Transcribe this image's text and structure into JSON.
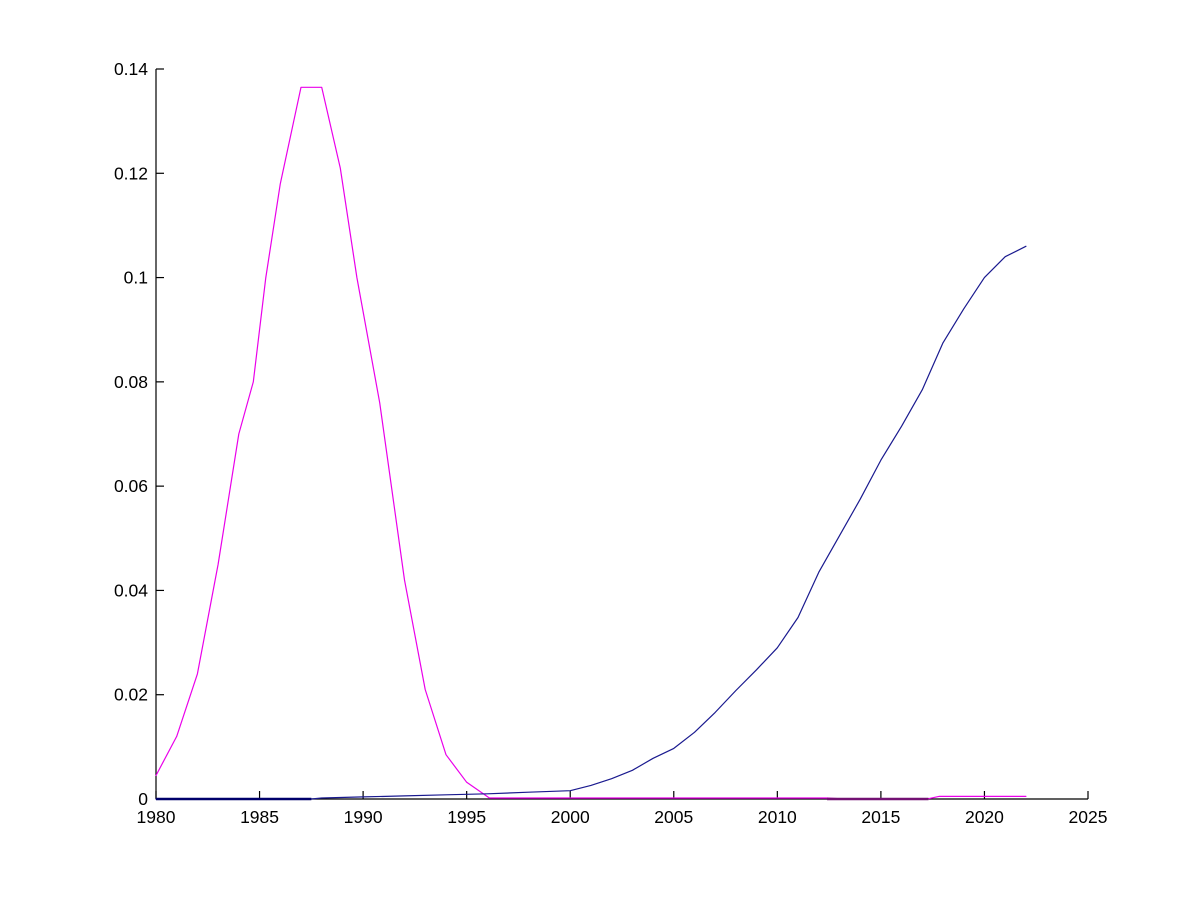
{
  "figure": {
    "background": "#ffffff",
    "title": ""
  },
  "chart_data": {
    "type": "line",
    "title": "",
    "xlabel": "",
    "ylabel": "",
    "xlim": [
      1980,
      2025
    ],
    "ylim": [
      0,
      0.14
    ],
    "grid": false,
    "legend": null,
    "axis_color": "#000000",
    "tick_length": 8,
    "x_ticks": [
      1980,
      1985,
      1990,
      1995,
      2000,
      2005,
      2010,
      2015,
      2020,
      2025
    ],
    "x_tick_labels": [
      "1980",
      "1985",
      "1990",
      "1995",
      "2000",
      "2005",
      "2010",
      "2015",
      "2020",
      "2025"
    ],
    "y_ticks": [
      0,
      0.02,
      0.04,
      0.06,
      0.08,
      0.1,
      0.12,
      0.14
    ],
    "y_tick_labels": [
      "0",
      "0.02",
      "0.04",
      "0.06",
      "0.08",
      "0.1",
      "0.12",
      "0.14"
    ],
    "series": [
      {
        "name": "magenta-bell-curve",
        "color": "#EA00EA",
        "width": 1.2,
        "points": [
          [
            1980,
            0.0045
          ],
          [
            1981,
            0.012
          ],
          [
            1982,
            0.024
          ],
          [
            1983,
            0.045
          ],
          [
            1984,
            0.07
          ],
          [
            1984.7,
            0.08
          ],
          [
            1985.3,
            0.1
          ],
          [
            1986,
            0.118
          ],
          [
            1987,
            0.1365
          ],
          [
            1988,
            0.1365
          ],
          [
            1988.9,
            0.121
          ],
          [
            1989.7,
            0.1
          ],
          [
            1990.8,
            0.076
          ],
          [
            1992,
            0.042
          ],
          [
            1993,
            0.021
          ],
          [
            1994,
            0.0085
          ],
          [
            1995,
            0.0032
          ],
          [
            1996.1,
            0.0002
          ],
          [
            2000,
            0.0002
          ],
          [
            2005,
            0.0002
          ],
          [
            2012.4,
            0.0002
          ],
          [
            2013,
            5e-05
          ],
          [
            2017.3,
            5e-05
          ],
          [
            2017.8,
            0.0005
          ],
          [
            2019,
            0.0005
          ],
          [
            2021,
            0.0005
          ],
          [
            2022,
            0.0005
          ]
        ]
      },
      {
        "name": "blue-rising-curve",
        "color": "#1A1A8F",
        "width": 1.2,
        "points": [
          [
            1980,
            0.0
          ],
          [
            1987.5,
            0.0
          ],
          [
            1988,
            0.0002
          ],
          [
            1990,
            0.0004
          ],
          [
            1992,
            0.0006
          ],
          [
            1994,
            0.0008
          ],
          [
            1996,
            0.001
          ],
          [
            1998,
            0.0013
          ],
          [
            2000,
            0.0016
          ],
          [
            2001,
            0.0026
          ],
          [
            2002,
            0.0039
          ],
          [
            2003,
            0.0055
          ],
          [
            2004,
            0.0078
          ],
          [
            2005,
            0.0097
          ],
          [
            2006,
            0.0128
          ],
          [
            2007,
            0.0166
          ],
          [
            2008,
            0.0208
          ],
          [
            2009,
            0.0248
          ],
          [
            2010,
            0.029
          ],
          [
            2011,
            0.0348
          ],
          [
            2012,
            0.0435
          ],
          [
            2013,
            0.0505
          ],
          [
            2014,
            0.0575
          ],
          [
            2015,
            0.065
          ],
          [
            2016,
            0.0715
          ],
          [
            2017,
            0.0785
          ],
          [
            2018,
            0.0875
          ],
          [
            2019,
            0.094
          ],
          [
            2020,
            0.1
          ],
          [
            2021,
            0.104
          ],
          [
            2022,
            0.106
          ]
        ]
      }
    ],
    "zero_line_overlaps": [
      {
        "name": "blue-on-axis-segment",
        "color": "#00006B",
        "width": 2.6,
        "x_from": 1980,
        "x_to": 1987.5,
        "value": 0
      },
      {
        "name": "magenta-on-axis-segment",
        "color": "#731173",
        "width": 2.4,
        "x_from": 2012.4,
        "x_to": 2017.3,
        "value": 0
      }
    ]
  }
}
